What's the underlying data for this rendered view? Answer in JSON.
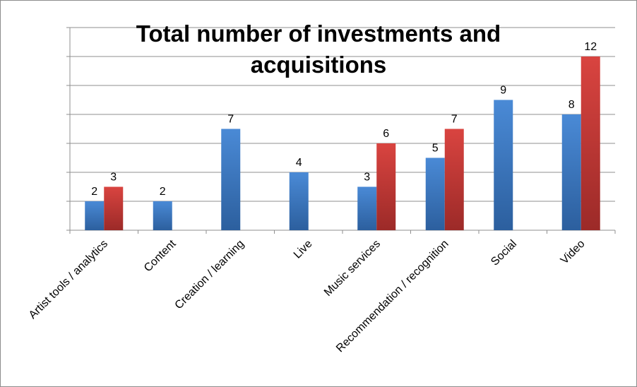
{
  "chart_data": {
    "type": "bar",
    "title_lines": [
      "Total number of investments and",
      "acquisitions"
    ],
    "categories": [
      "Artist tools / analytics",
      "Content",
      "Creation / learning",
      "Live",
      "Music services",
      "Recommendation / recognition",
      "Social",
      "Video"
    ],
    "series": [
      {
        "values": [
          2,
          2,
          7,
          4,
          3,
          5,
          9,
          8
        ],
        "color": "#3a76c0"
      },
      {
        "values": [
          3,
          null,
          null,
          null,
          6,
          7,
          null,
          12
        ],
        "color": "#c83330"
      }
    ],
    "ylim": [
      0,
      14
    ],
    "ytick_step": 2,
    "grid": true,
    "legend": "none"
  }
}
